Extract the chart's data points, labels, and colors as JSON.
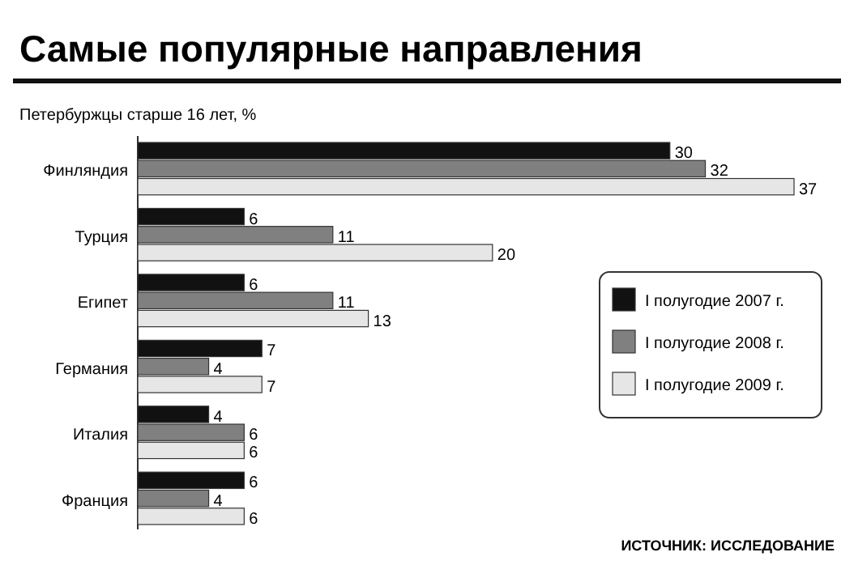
{
  "chart_data": {
    "type": "bar",
    "orientation": "horizontal",
    "title": "Самые популярные направления",
    "subtitle": "Петербуржцы старше 16 лет, %",
    "categories": [
      "Финляндия",
      "Турция",
      "Египет",
      "Германия",
      "Италия",
      "Франция"
    ],
    "series": [
      {
        "name": "I полугодие 2007 г.",
        "color": "#111111",
        "values": [
          30,
          6,
          6,
          7,
          4,
          6
        ]
      },
      {
        "name": "I полугодие 2008 г.",
        "color": "#808080",
        "values": [
          32,
          11,
          11,
          4,
          6,
          4
        ]
      },
      {
        "name": "I полугодие 2009 г.",
        "color": "#e6e6e6",
        "values": [
          37,
          20,
          13,
          7,
          6,
          6
        ]
      }
    ],
    "data_labels": true,
    "legend": "right",
    "annotations": [
      "ИСТОЧНИК: ИССЛЕДОВАНИЕ"
    ]
  }
}
